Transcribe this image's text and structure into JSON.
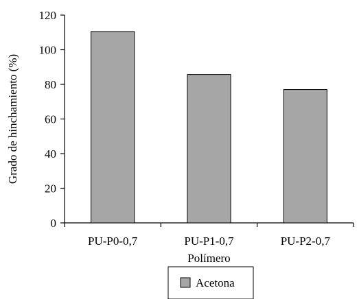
{
  "chart_data": {
    "type": "bar",
    "categories": [
      "PU-P0-0,7",
      "PU-P1-0,7",
      "PU-P2-0,7"
    ],
    "series": [
      {
        "name": "Acetona",
        "values": [
          110.5,
          85.7,
          77.0
        ],
        "color": "#a6a6a6"
      }
    ],
    "xlabel": "Polímero",
    "ylabel": "Grado de hinchamiento (%)",
    "ylim": [
      0,
      120
    ],
    "yticks": [
      "0",
      "20",
      "40",
      "60",
      "80",
      "100",
      "120"
    ],
    "grid": false,
    "legend_position": "bottom-center"
  }
}
